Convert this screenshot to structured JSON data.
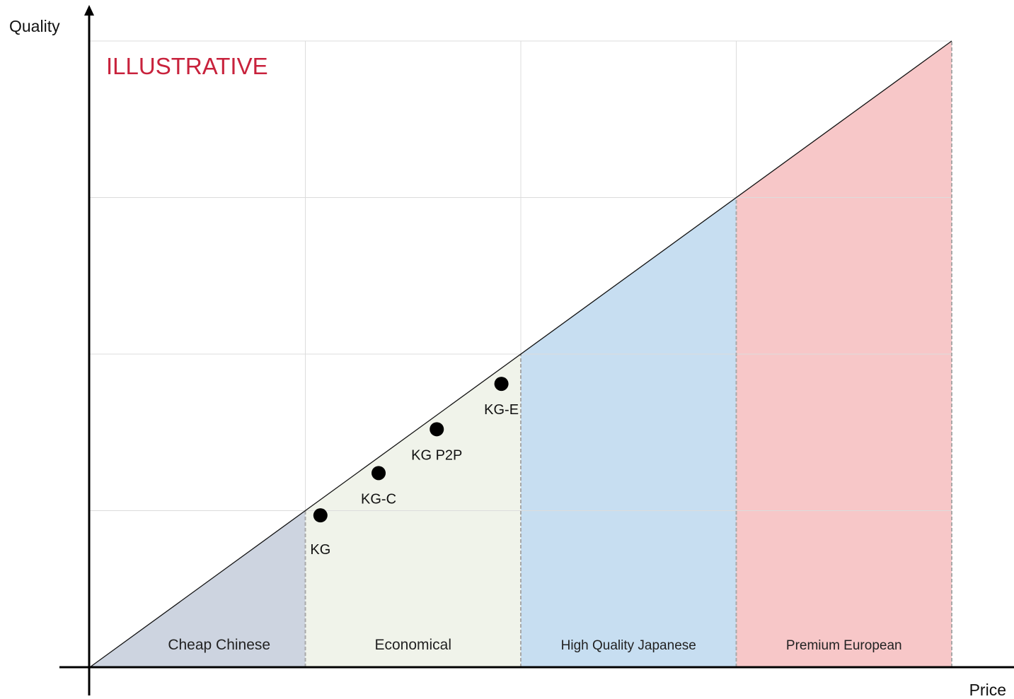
{
  "chart_data": {
    "type": "area",
    "xlabel": "Price",
    "ylabel": "Quality",
    "xlim": [
      0,
      4
    ],
    "ylim": [
      0,
      4
    ],
    "grid": true,
    "annotation": "ILLUSTRATIVE",
    "annotation_color": "#C8223C",
    "diagonal": [
      [
        0,
        0
      ],
      [
        4,
        4
      ]
    ],
    "segments": [
      {
        "name": "Cheap Chinese",
        "x_range": [
          0,
          1
        ],
        "color": "#CDD4E0"
      },
      {
        "name": "Economical",
        "x_range": [
          1,
          2
        ],
        "color": "#F0F3EA"
      },
      {
        "name": "High Quality Japanese",
        "x_range": [
          2,
          3
        ],
        "color": "#C7DEF1"
      },
      {
        "name": "Premium European",
        "x_range": [
          3,
          4
        ],
        "color": "#F7C7C8"
      }
    ],
    "points": [
      {
        "label": "KG",
        "x": 1.07,
        "y": 0.97
      },
      {
        "label": "KG-C",
        "x": 1.34,
        "y": 1.24
      },
      {
        "label": "KG P2P",
        "x": 1.61,
        "y": 1.52
      },
      {
        "label": "KG-E",
        "x": 1.91,
        "y": 1.81
      }
    ]
  }
}
